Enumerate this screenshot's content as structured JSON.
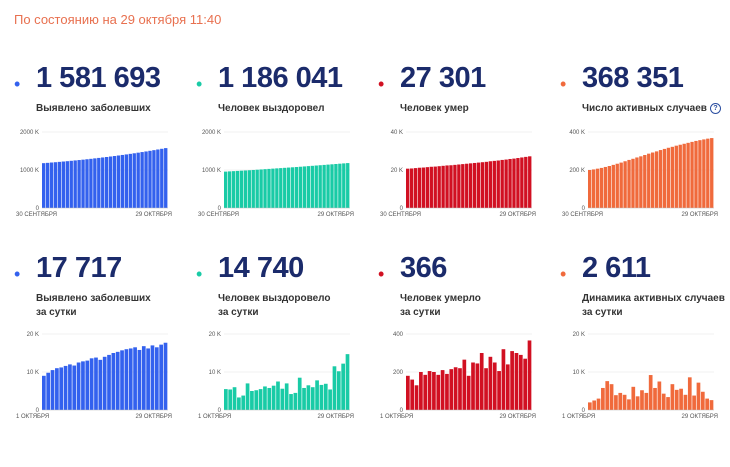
{
  "status_text": "По состоянию на 29 октября 11:40",
  "cards": [
    {
      "number": "1 581 693",
      "label1": "Выявлено заболевших",
      "label2": "",
      "info": false,
      "color": "#3361ee",
      "axis": [
        "2000 K",
        "1000 K",
        "0"
      ],
      "max": 2000,
      "x_start": "30 СЕНТЯБРЯ",
      "x_end": "29 ОКТЯБРЯ",
      "values": [
        1180,
        1188,
        1197,
        1205,
        1214,
        1223,
        1232,
        1242,
        1252,
        1262,
        1272,
        1283,
        1294,
        1306,
        1318,
        1330,
        1342,
        1355,
        1368,
        1382,
        1396,
        1410,
        1425,
        1440,
        1456,
        1472,
        1488,
        1505,
        1522,
        1540,
        1558,
        1576
      ]
    },
    {
      "number": "1 186 041",
      "label1": "Человек выздоровел",
      "label2": "",
      "info": false,
      "color": "#19cba6",
      "axis": [
        "2000 K",
        "1000 K",
        "0"
      ],
      "max": 2000,
      "x_start": "30 СЕНТЯБРЯ",
      "x_end": "29 ОКТЯБРЯ",
      "values": [
        958,
        964,
        970,
        976,
        982,
        988,
        994,
        1001,
        1008,
        1015,
        1022,
        1029,
        1036,
        1043,
        1050,
        1057,
        1064,
        1071,
        1078,
        1086,
        1094,
        1102,
        1110,
        1118,
        1126,
        1134,
        1142,
        1150,
        1158,
        1166,
        1174,
        1182
      ]
    },
    {
      "number": "27 301",
      "label1": "Человек умер",
      "label2": "",
      "info": false,
      "color": "#d11022",
      "axis": [
        "40 K",
        "20 K",
        "0"
      ],
      "max": 40,
      "x_start": "30 СЕНТЯБРЯ",
      "x_end": "29 ОКТЯБРЯ",
      "values": [
        20.7,
        20.8,
        21.0,
        21.2,
        21.3,
        21.5,
        21.7,
        21.8,
        22.0,
        22.2,
        22.4,
        22.5,
        22.7,
        22.9,
        23.1,
        23.3,
        23.5,
        23.7,
        23.9,
        24.1,
        24.3,
        24.6,
        24.8,
        25.0,
        25.3,
        25.5,
        25.8,
        26.0,
        26.3,
        26.6,
        26.9,
        27.2
      ]
    },
    {
      "number": "368 351",
      "label1": "Число активных случаев",
      "label2": "",
      "info": true,
      "color": "#f06a3c",
      "axis": [
        "400 K",
        "200 K",
        "0"
      ],
      "max": 400,
      "x_start": "30 СЕНТЯБРЯ",
      "x_end": "29 ОКТЯБРЯ",
      "values": [
        200,
        203,
        207,
        211,
        216,
        221,
        227,
        233,
        239,
        246,
        253,
        259,
        266,
        272,
        279,
        286,
        292,
        298,
        305,
        311,
        317,
        322,
        328,
        333,
        338,
        343,
        348,
        353,
        357,
        361,
        365,
        368
      ]
    },
    {
      "number": "17 717",
      "label1": "Выявлено заболевших",
      "label2": "за сутки",
      "info": false,
      "color": "#3361ee",
      "axis": [
        "20 K",
        "10 K",
        "0"
      ],
      "max": 20,
      "x_start": "1 ОКТЯБРЯ",
      "x_end": "29 ОКТЯБРЯ",
      "values": [
        9.0,
        9.8,
        10.5,
        11.0,
        11.2,
        11.6,
        12.0,
        11.7,
        12.5,
        12.8,
        13.0,
        13.6,
        13.8,
        13.2,
        14.0,
        14.5,
        15.0,
        15.3,
        15.7,
        16.0,
        16.2,
        16.5,
        15.8,
        16.8,
        16.2,
        17.0,
        16.5,
        17.2,
        17.7
      ]
    },
    {
      "number": "14 740",
      "label1": "Человек выздоровело",
      "label2": "за сутки",
      "info": false,
      "color": "#19cba6",
      "axis": [
        "20 K",
        "10 K",
        "0"
      ],
      "max": 20,
      "x_start": "1 ОКТЯБРЯ",
      "x_end": "29 ОКТЯБРЯ",
      "values": [
        5.5,
        5.4,
        6.0,
        3.3,
        3.8,
        7.0,
        5.0,
        5.2,
        5.5,
        6.2,
        5.8,
        6.4,
        7.5,
        5.6,
        7.0,
        4.2,
        4.5,
        8.5,
        5.8,
        6.5,
        6.0,
        7.8,
        6.6,
        6.9,
        5.4,
        11.5,
        10.2,
        12.2,
        14.7
      ]
    },
    {
      "number": "366",
      "label1": "Человек умерло",
      "label2": "за сутки",
      "info": false,
      "color": "#d11022",
      "axis": [
        "400",
        "200",
        "0"
      ],
      "max": 400,
      "x_start": "1 ОКТЯБРЯ",
      "x_end": "29 ОКТЯБРЯ",
      "values": [
        180,
        160,
        130,
        200,
        185,
        205,
        200,
        185,
        210,
        190,
        215,
        225,
        220,
        265,
        180,
        250,
        245,
        300,
        220,
        280,
        250,
        205,
        320,
        240,
        310,
        300,
        290,
        270,
        366
      ]
    },
    {
      "number": "2 611",
      "label1": "Динамика активных случаев",
      "label2": "за сутки",
      "info": false,
      "color": "#f06a3c",
      "axis": [
        "20 K",
        "10 K",
        "0"
      ],
      "max": 20,
      "x_start": "1 ОКТЯБРЯ",
      "x_end": "29 ОКТЯБРЯ",
      "values": [
        2.0,
        2.5,
        3.0,
        5.8,
        7.6,
        6.8,
        3.9,
        4.5,
        4.0,
        2.8,
        6.1,
        3.6,
        5.2,
        4.5,
        9.2,
        5.8,
        7.5,
        4.3,
        3.4,
        6.8,
        5.3,
        5.6,
        4.0,
        8.6,
        3.8,
        7.2,
        4.8,
        3.0,
        2.6
      ]
    }
  ]
}
